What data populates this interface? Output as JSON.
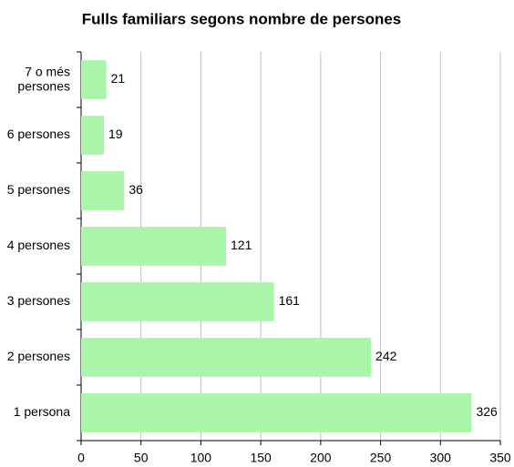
{
  "chart_data": {
    "type": "bar",
    "orientation": "horizontal",
    "title": "Fulls familiars segons nombre de  persones",
    "categories": [
      "7 o més\npersones",
      "6 persones",
      "5 persones",
      "4 persones",
      "3 persones",
      "2 persones",
      "1 persona"
    ],
    "values": [
      21,
      19,
      36,
      121,
      161,
      242,
      326
    ],
    "color": "#aaf5aa",
    "xlim": [
      0,
      350
    ],
    "xticks": [
      0,
      50,
      100,
      150,
      200,
      250,
      300,
      350
    ],
    "grid": true
  }
}
